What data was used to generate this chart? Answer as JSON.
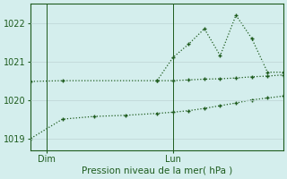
{
  "background_color": "#d4eeed",
  "grid_color": "#c0d8d8",
  "line_color": "#1e5c1e",
  "title": "Pression niveau de la mer( hPa )",
  "xlim": [
    0,
    48
  ],
  "ylim": [
    1018.7,
    1022.5
  ],
  "yticks": [
    1019,
    1020,
    1021,
    1022
  ],
  "xtick_positions": [
    3,
    27
  ],
  "xtick_labels": [
    "Dim",
    "Lun"
  ],
  "vlines": [
    3,
    27
  ],
  "top_x": [
    24,
    27,
    30,
    33,
    36,
    39,
    42,
    45,
    48
  ],
  "top_y": [
    1020.5,
    1021.1,
    1021.45,
    1021.85,
    1021.15,
    1022.2,
    1021.6,
    1020.72,
    1020.72
  ],
  "mid_x": [
    0,
    6,
    24,
    27,
    30,
    33,
    36,
    39,
    42,
    45,
    48
  ],
  "mid_y": [
    1020.48,
    1020.5,
    1020.5,
    1020.5,
    1020.52,
    1020.54,
    1020.55,
    1020.57,
    1020.6,
    1020.62,
    1020.65
  ],
  "bot_x": [
    0,
    6,
    12,
    18,
    24,
    27,
    30,
    33,
    36,
    39,
    42,
    45,
    48
  ],
  "bot_y": [
    1019.0,
    1019.5,
    1019.57,
    1019.6,
    1019.65,
    1019.68,
    1019.72,
    1019.78,
    1019.85,
    1019.92,
    1020.0,
    1020.05,
    1020.1
  ]
}
